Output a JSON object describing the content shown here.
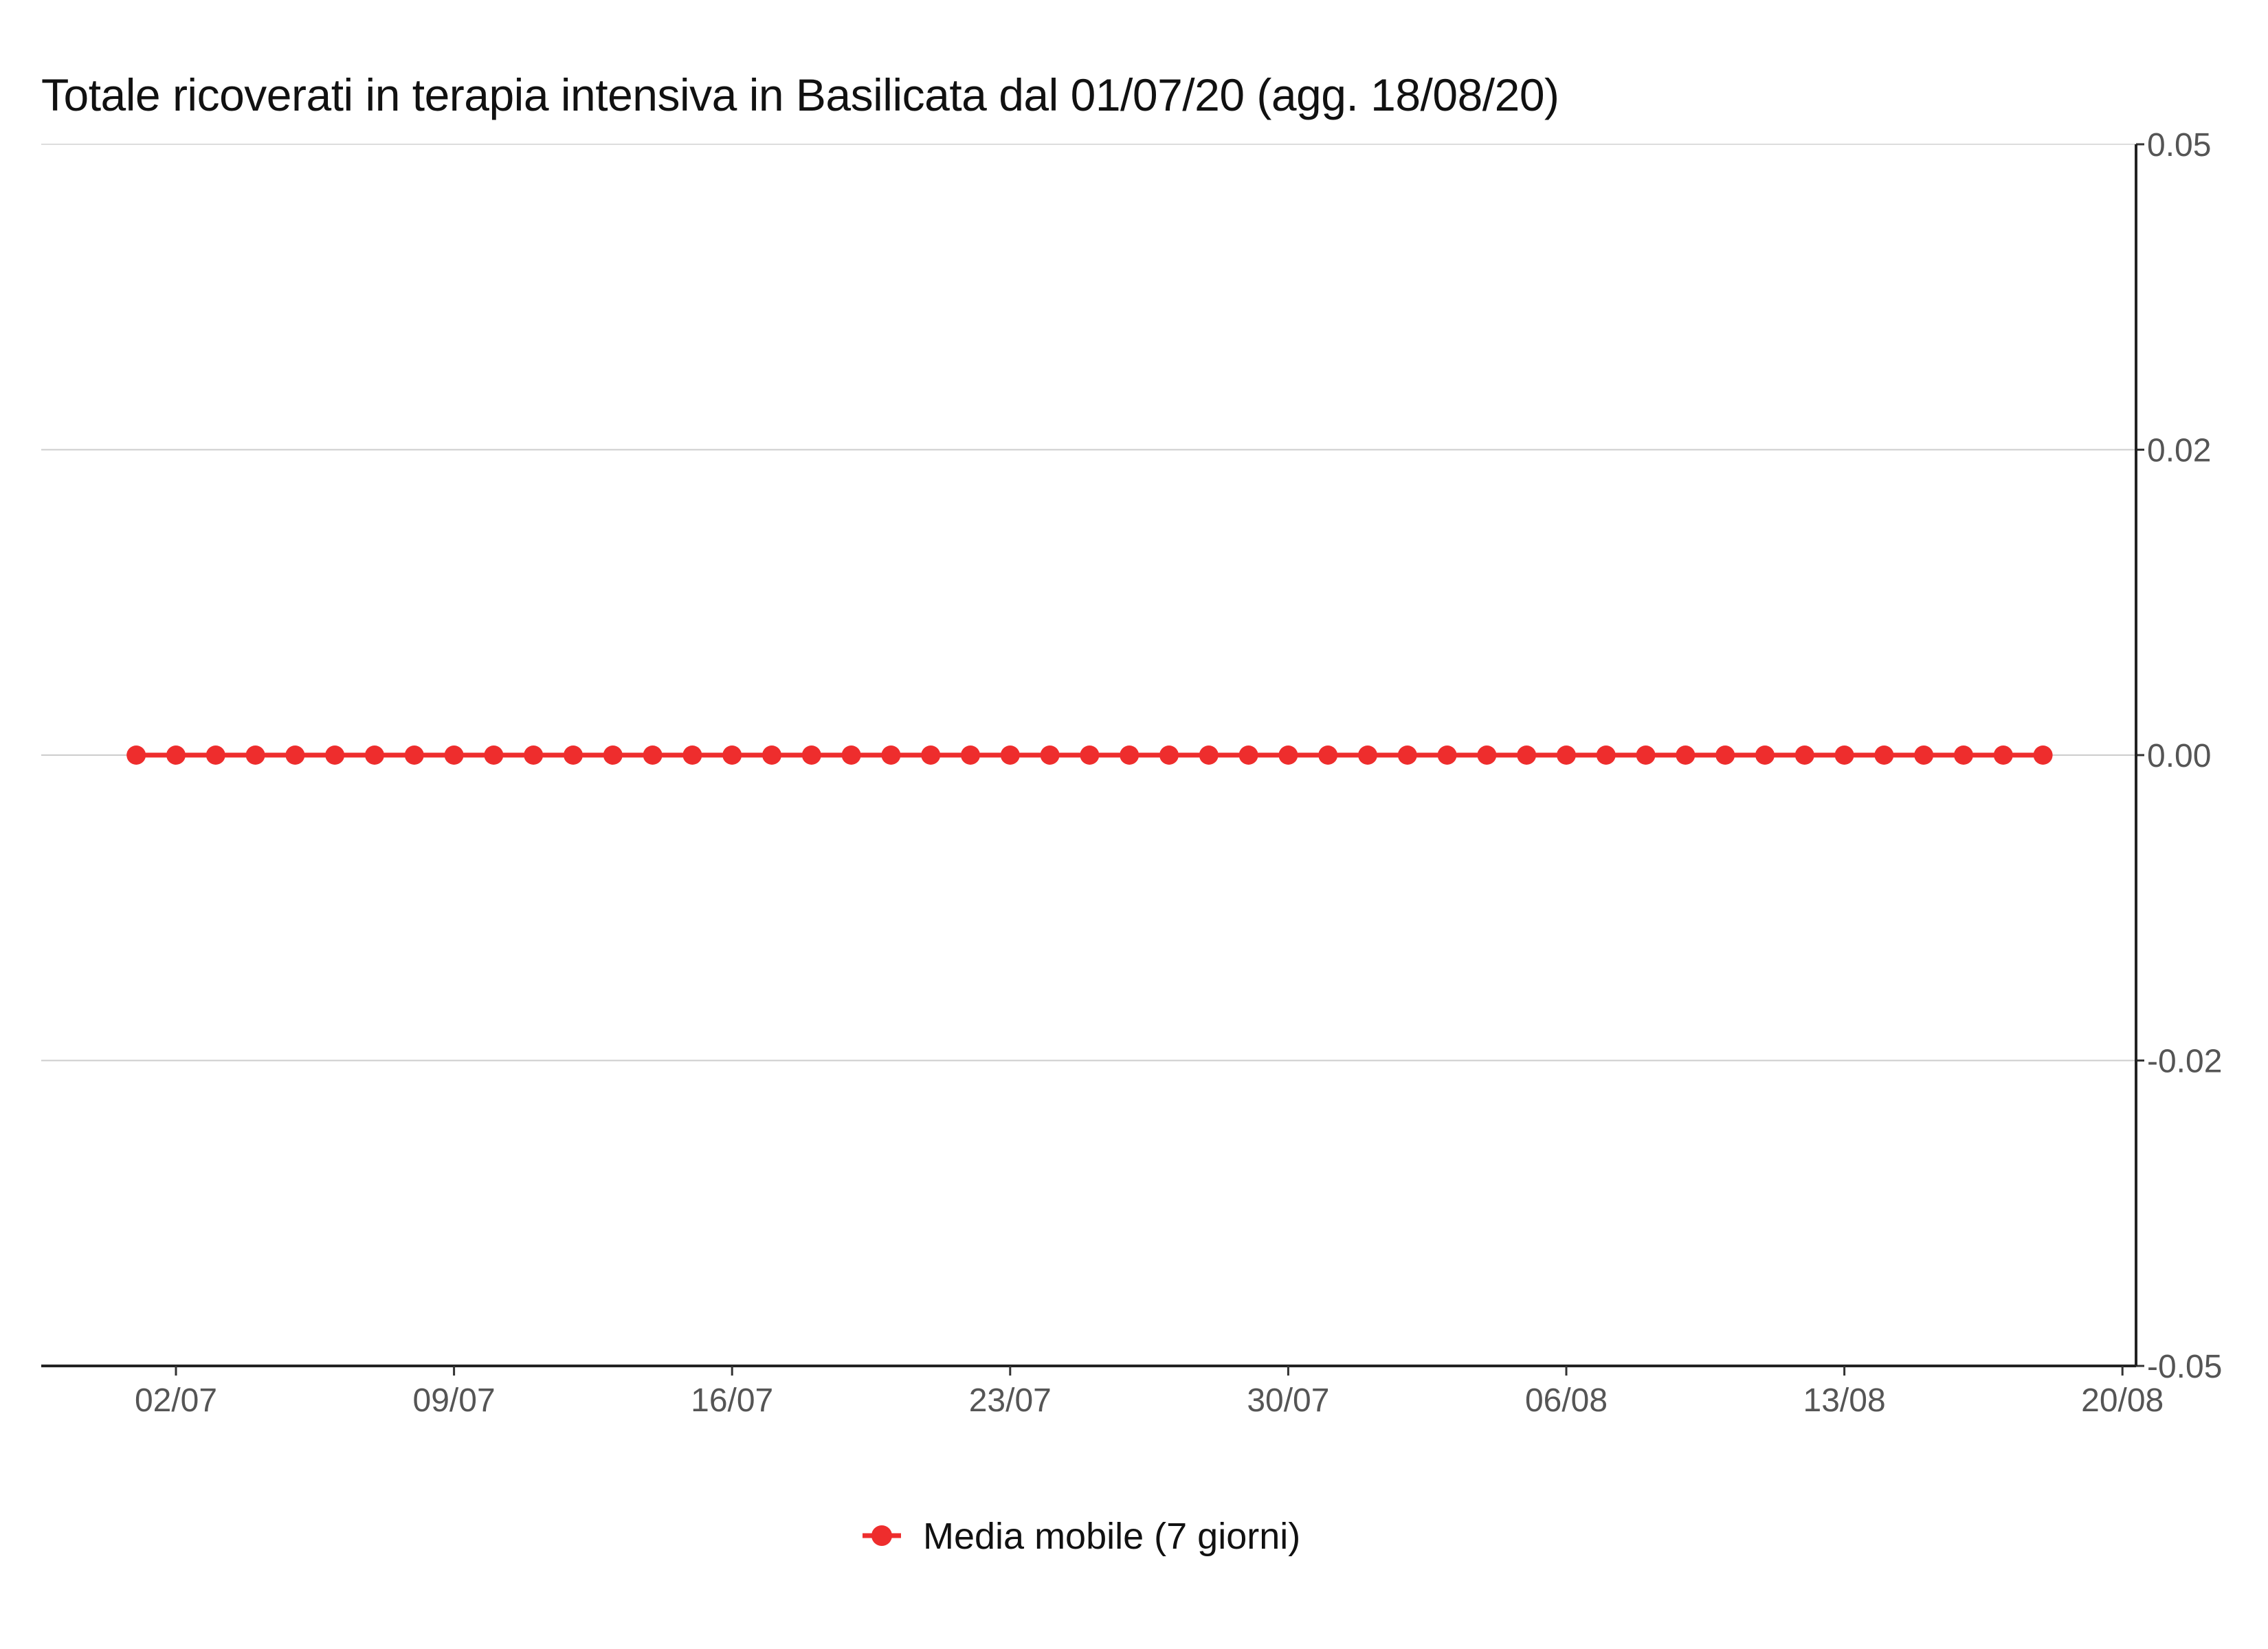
{
  "chart_data": {
    "type": "line",
    "title": "Totale ricoverati in terapia intensiva in Basilicata dal 01/07/20 (agg. 18/08/20)",
    "xlabel": "",
    "ylabel": "",
    "x_start": "01/07",
    "x_end": "18/08",
    "x_ticks": [
      "02/07",
      "09/07",
      "16/07",
      "23/07",
      "30/07",
      "06/08",
      "13/08",
      "20/08"
    ],
    "y_ticks": [
      "0.05",
      "0.02",
      "0.00",
      "-0.02",
      "-0.05"
    ],
    "y_tick_values": [
      0.05,
      0.025,
      0,
      -0.025,
      -0.05
    ],
    "ylim": [
      -0.05,
      0.05
    ],
    "y_axis_side": "right",
    "grid": "horizontal",
    "legend_position": "bottom",
    "series": [
      {
        "name": "Media mobile (7 giorni)",
        "color": "#ee2d2d",
        "x": [
          "01/07",
          "02/07",
          "03/07",
          "04/07",
          "05/07",
          "06/07",
          "07/07",
          "08/07",
          "09/07",
          "10/07",
          "11/07",
          "12/07",
          "13/07",
          "14/07",
          "15/07",
          "16/07",
          "17/07",
          "18/07",
          "19/07",
          "20/07",
          "21/07",
          "22/07",
          "23/07",
          "24/07",
          "25/07",
          "26/07",
          "27/07",
          "28/07",
          "29/07",
          "30/07",
          "31/07",
          "01/08",
          "02/08",
          "03/08",
          "04/08",
          "05/08",
          "06/08",
          "07/08",
          "08/08",
          "09/08",
          "10/08",
          "11/08",
          "12/08",
          "13/08",
          "14/08",
          "15/08",
          "16/08",
          "17/08",
          "18/08"
        ],
        "values": [
          0,
          0,
          0,
          0,
          0,
          0,
          0,
          0,
          0,
          0,
          0,
          0,
          0,
          0,
          0,
          0,
          0,
          0,
          0,
          0,
          0,
          0,
          0,
          0,
          0,
          0,
          0,
          0,
          0,
          0,
          0,
          0,
          0,
          0,
          0,
          0,
          0,
          0,
          0,
          0,
          0,
          0,
          0,
          0,
          0,
          0,
          0,
          0,
          0
        ]
      }
    ]
  }
}
